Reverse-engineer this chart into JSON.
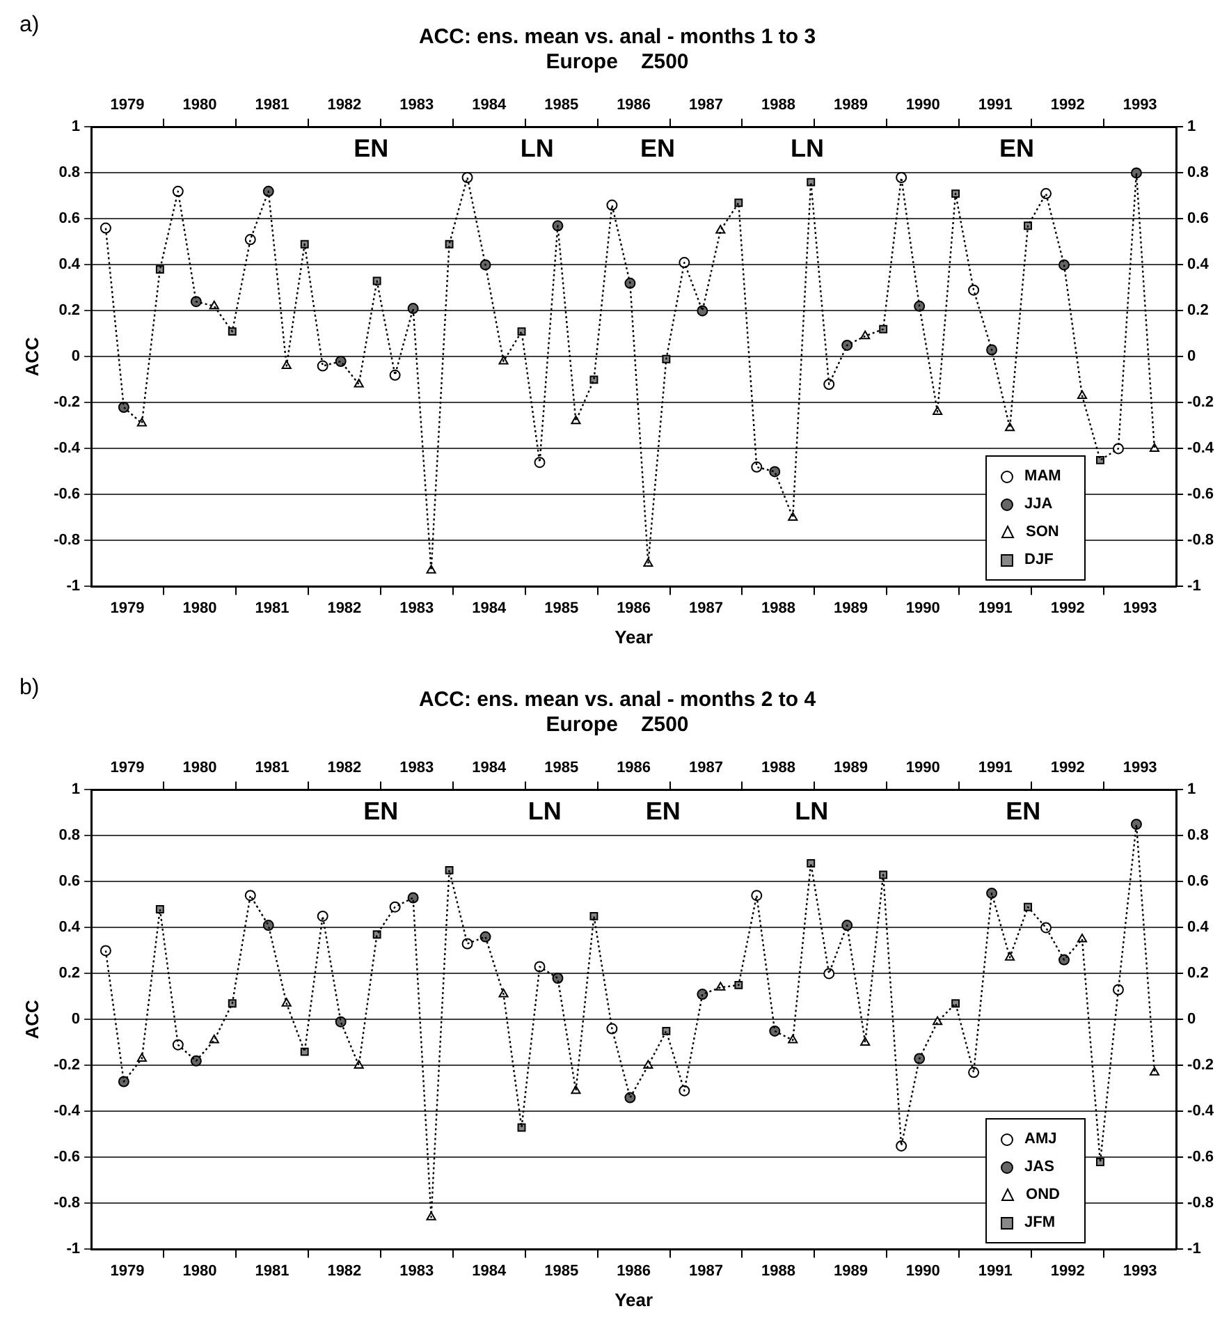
{
  "chart_data": [
    {
      "type": "line",
      "title": "ACC: ens. mean vs. anal - months 1 to 3",
      "subtitle": "Europe    Z500",
      "xlabel": "Year",
      "ylabel": "ACC",
      "annotations": [
        "a)",
        "EN",
        "LN",
        "EN",
        "LN",
        "EN"
      ],
      "series": [
        {
          "type": "line",
          "color": "#000000",
          "marker": "none",
          "line_style": "dotted",
          "x": [
            1979.2,
            1979.45,
            1979.7,
            1979.95,
            1980.2,
            1980.45,
            1980.7,
            1980.95,
            1981.2,
            1981.45,
            1981.7,
            1981.95,
            1982.2,
            1982.45,
            1982.7,
            1982.95,
            1983.2,
            1983.45,
            1983.7,
            1983.95,
            1984.2,
            1984.45,
            1984.7,
            1984.95,
            1985.2,
            1985.45,
            1985.7,
            1985.95,
            1986.2,
            1986.45,
            1986.7,
            1986.95,
            1987.2,
            1987.45,
            1987.7,
            1987.95,
            1988.2,
            1988.45,
            1988.7,
            1988.95,
            1989.2,
            1989.45,
            1989.7,
            1989.95,
            1990.2,
            1990.45,
            1990.7,
            1990.95,
            1991.2,
            1991.45,
            1991.7,
            1991.95,
            1992.2,
            1992.45,
            1992.7,
            1992.95,
            1993.2,
            1993.45,
            1993.7
          ],
          "values": [
            0.56,
            -0.22,
            -0.29,
            0.38,
            0.72,
            0.24,
            0.22,
            0.11,
            0.51,
            0.72,
            -0.04,
            0.49,
            -0.04,
            -0.02,
            -0.12,
            0.33,
            -0.08,
            0.21,
            -0.93,
            0.49,
            0.78,
            0.4,
            -0.02,
            0.11,
            -0.46,
            0.57,
            -0.28,
            -0.1,
            0.66,
            0.32,
            -0.9,
            -0.01,
            0.41,
            0.2,
            0.55,
            0.67,
            -0.48,
            -0.5,
            -0.7,
            0.76,
            -0.12,
            0.05,
            0.09,
            0.12,
            0.78,
            0.22,
            -0.24,
            0.71,
            0.29,
            0.03,
            -0.31,
            0.57,
            0.71,
            0.4,
            -0.17,
            -0.45,
            -0.4,
            0.8,
            -0.4
          ]
        },
        {
          "type": "scatter",
          "name": "MAM",
          "color": "#ffffff",
          "marker": "circle",
          "x": [
            1979.2,
            1980.2,
            1981.2,
            1982.2,
            1983.2,
            1984.2,
            1985.2,
            1986.2,
            1987.2,
            1988.2,
            1989.2,
            1990.2,
            1991.2,
            1992.2,
            1993.2
          ],
          "values": [
            0.56,
            0.72,
            0.51,
            -0.04,
            -0.08,
            0.78,
            -0.46,
            0.66,
            0.41,
            -0.48,
            -0.12,
            0.78,
            0.29,
            0.71,
            -0.4
          ]
        },
        {
          "type": "scatter",
          "name": "JJA",
          "color": "#666666",
          "marker": "circle",
          "x": [
            1979.45,
            1980.45,
            1981.45,
            1982.45,
            1983.45,
            1984.45,
            1985.45,
            1986.45,
            1987.45,
            1988.45,
            1989.45,
            1990.45,
            1991.45,
            1992.45,
            1993.45
          ],
          "values": [
            -0.22,
            0.24,
            0.72,
            -0.02,
            0.21,
            0.4,
            0.57,
            0.32,
            0.2,
            -0.5,
            0.05,
            0.22,
            0.03,
            0.4,
            0.8
          ]
        },
        {
          "type": "scatter",
          "name": "SON",
          "color": "#ffffff",
          "marker": "triangle",
          "x": [
            1979.7,
            1980.7,
            1981.7,
            1982.7,
            1983.7,
            1984.7,
            1985.7,
            1986.7,
            1987.7,
            1988.7,
            1989.7,
            1990.7,
            1991.7,
            1992.7,
            1993.7
          ],
          "values": [
            -0.29,
            0.22,
            -0.04,
            -0.12,
            -0.93,
            -0.02,
            -0.28,
            -0.9,
            0.55,
            -0.7,
            0.09,
            -0.24,
            -0.31,
            -0.17,
            -0.4
          ]
        },
        {
          "type": "scatter",
          "name": "DJF",
          "color": "#888888",
          "marker": "square",
          "x": [
            1979.95,
            1980.95,
            1981.95,
            1982.95,
            1983.95,
            1984.95,
            1985.95,
            1986.95,
            1987.95,
            1988.95,
            1989.95,
            1990.95,
            1991.95,
            1992.95
          ],
          "values": [
            0.38,
            0.11,
            0.49,
            0.33,
            0.49,
            0.11,
            -0.1,
            -0.01,
            0.67,
            0.76,
            0.12,
            0.71,
            0.57,
            -0.45
          ]
        }
      ],
      "xlim": [
        1979,
        1994
      ],
      "xticks": [
        {
          "value": 1979.5,
          "label": "1979"
        },
        {
          "value": 1980,
          "label": null
        },
        {
          "value": 1980.5,
          "label": "1980"
        },
        {
          "value": 1981,
          "label": null
        },
        {
          "value": 1981.5,
          "label": "1981"
        },
        {
          "value": 1982,
          "label": null
        },
        {
          "value": 1982.5,
          "label": "1982"
        },
        {
          "value": 1983,
          "label": null
        },
        {
          "value": 1983.5,
          "label": "1983"
        },
        {
          "value": 1984,
          "label": null
        },
        {
          "value": 1984.5,
          "label": "1984"
        },
        {
          "value": 1985,
          "label": null
        },
        {
          "value": 1985.5,
          "label": "1985"
        },
        {
          "value": 1986,
          "label": null
        },
        {
          "value": 1986.5,
          "label": "1986"
        },
        {
          "value": 1987,
          "label": null
        },
        {
          "value": 1987.5,
          "label": "1987"
        },
        {
          "value": 1988,
          "label": null
        },
        {
          "value": 1988.5,
          "label": "1988"
        },
        {
          "value": 1989,
          "label": null
        },
        {
          "value": 1989.5,
          "label": "1989"
        },
        {
          "value": 1990,
          "label": null
        },
        {
          "value": 1990.5,
          "label": "1990"
        },
        {
          "value": 1991,
          "label": null
        },
        {
          "value": 1991.5,
          "label": "1991"
        },
        {
          "value": 1992,
          "label": null
        },
        {
          "value": 1992.5,
          "label": "1992"
        },
        {
          "value": 1993,
          "label": null
        },
        {
          "value": 1993.5,
          "label": "1993"
        }
      ],
      "x2lim": [
        1979,
        1994
      ],
      "x2ticks": [
        {
          "value": 1979.5,
          "label": "1979"
        },
        {
          "value": 1980,
          "label": null
        },
        {
          "value": 1980.5,
          "label": "1980"
        },
        {
          "value": 1981,
          "label": null
        },
        {
          "value": 1981.5,
          "label": "1981"
        },
        {
          "value": 1982,
          "label": null
        },
        {
          "value": 1982.5,
          "label": "1982"
        },
        {
          "value": 1983,
          "label": null
        },
        {
          "value": 1983.5,
          "label": "1983"
        },
        {
          "value": 1984,
          "label": null
        },
        {
          "value": 1984.5,
          "label": "1984"
        },
        {
          "value": 1985,
          "label": null
        },
        {
          "value": 1985.5,
          "label": "1985"
        },
        {
          "value": 1986,
          "label": null
        },
        {
          "value": 1986.5,
          "label": "1986"
        },
        {
          "value": 1987,
          "label": null
        },
        {
          "value": 1987.5,
          "label": "1987"
        },
        {
          "value": 1988,
          "label": null
        },
        {
          "value": 1988.5,
          "label": "1988"
        },
        {
          "value": 1989,
          "label": null
        },
        {
          "value": 1989.5,
          "label": "1989"
        },
        {
          "value": 1990,
          "label": null
        },
        {
          "value": 1990.5,
          "label": "1990"
        },
        {
          "value": 1991,
          "label": null
        },
        {
          "value": 1991.5,
          "label": "1991"
        },
        {
          "value": 1992,
          "label": null
        },
        {
          "value": 1992.5,
          "label": "1992"
        },
        {
          "value": 1993,
          "label": null
        },
        {
          "value": 1993.5,
          "label": "1993"
        }
      ],
      "ylim": [
        -1,
        1
      ],
      "yticks": [
        -1,
        -0.8,
        -0.6,
        -0.4,
        -0.2,
        0,
        0.2,
        0.4,
        0.6,
        0.8,
        1
      ],
      "y2lim": [
        -1,
        1
      ],
      "y2ticks": [
        -1,
        -0.8,
        -0.6,
        -0.4,
        -0.2,
        0,
        0.2,
        0.4,
        0.6,
        0.8,
        1
      ],
      "grid": "y",
      "legend": "bottom right"
    },
    {
      "type": "line",
      "title": "ACC: ens. mean vs. anal - months 2 to 4",
      "subtitle": "Europe    Z500",
      "xlabel": "Year",
      "ylabel": "ACC",
      "annotations": [
        "b)",
        "EN",
        "LN",
        "EN",
        "LN",
        "EN"
      ],
      "series": [
        {
          "type": "line",
          "color": "#000000",
          "marker": "none",
          "line_style": "dotted",
          "x": [
            1979.2,
            1979.45,
            1979.7,
            1979.95,
            1980.2,
            1980.45,
            1980.7,
            1980.95,
            1981.2,
            1981.45,
            1981.7,
            1981.95,
            1982.2,
            1982.45,
            1982.7,
            1982.95,
            1983.2,
            1983.45,
            1983.7,
            1983.95,
            1984.2,
            1984.45,
            1984.7,
            1984.95,
            1985.2,
            1985.45,
            1985.7,
            1985.95,
            1986.2,
            1986.45,
            1986.7,
            1986.95,
            1987.2,
            1987.45,
            1987.7,
            1987.95,
            1988.2,
            1988.45,
            1988.7,
            1988.95,
            1989.2,
            1989.45,
            1989.7,
            1989.95,
            1990.2,
            1990.45,
            1990.7,
            1990.95,
            1991.2,
            1991.45,
            1991.7,
            1991.95,
            1992.2,
            1992.45,
            1992.7,
            1992.95,
            1993.2,
            1993.45,
            1993.7
          ],
          "values": [
            0.3,
            -0.27,
            -0.17,
            0.48,
            -0.11,
            -0.18,
            -0.09,
            0.07,
            0.54,
            0.41,
            0.07,
            -0.14,
            0.45,
            -0.01,
            -0.2,
            0.37,
            0.49,
            0.53,
            -0.86,
            0.65,
            0.33,
            0.36,
            0.11,
            -0.47,
            0.23,
            0.18,
            -0.31,
            0.45,
            -0.04,
            -0.34,
            -0.2,
            -0.05,
            -0.31,
            0.11,
            0.14,
            0.15,
            0.54,
            -0.05,
            -0.09,
            0.68,
            0.2,
            0.41,
            -0.1,
            0.63,
            -0.55,
            -0.17,
            -0.01,
            0.07,
            -0.23,
            0.55,
            0.27,
            0.49,
            0.4,
            0.26,
            0.35,
            -0.62,
            0.13,
            0.85,
            -0.23
          ]
        },
        {
          "type": "scatter",
          "name": "AMJ",
          "color": "#ffffff",
          "marker": "circle",
          "x": [
            1979.2,
            1980.2,
            1981.2,
            1982.2,
            1983.2,
            1984.2,
            1985.2,
            1986.2,
            1987.2,
            1988.2,
            1989.2,
            1990.2,
            1991.2,
            1992.2,
            1993.2
          ],
          "values": [
            0.3,
            -0.11,
            0.54,
            0.45,
            0.49,
            0.33,
            0.23,
            -0.04,
            -0.31,
            0.54,
            0.2,
            -0.55,
            -0.23,
            0.4,
            0.13
          ]
        },
        {
          "type": "scatter",
          "name": "JAS",
          "color": "#666666",
          "marker": "circle",
          "x": [
            1979.45,
            1980.45,
            1981.45,
            1982.45,
            1983.45,
            1984.45,
            1985.45,
            1986.45,
            1987.45,
            1988.45,
            1989.45,
            1990.45,
            1991.45,
            1992.45,
            1993.45
          ],
          "values": [
            -0.27,
            -0.18,
            0.41,
            -0.01,
            0.53,
            0.36,
            0.18,
            -0.34,
            0.11,
            -0.05,
            0.41,
            -0.17,
            0.55,
            0.26,
            0.85
          ]
        },
        {
          "type": "scatter",
          "name": "OND",
          "color": "#ffffff",
          "marker": "triangle",
          "x": [
            1979.7,
            1980.7,
            1981.7,
            1982.7,
            1983.7,
            1984.7,
            1985.7,
            1986.7,
            1987.7,
            1988.7,
            1989.7,
            1990.7,
            1991.7,
            1992.7,
            1993.7
          ],
          "values": [
            -0.17,
            -0.09,
            0.07,
            -0.2,
            -0.86,
            0.11,
            -0.31,
            -0.2,
            0.14,
            -0.09,
            -0.1,
            -0.01,
            0.27,
            0.35,
            -0.23
          ]
        },
        {
          "type": "scatter",
          "name": "JFM",
          "color": "#888888",
          "marker": "square",
          "x": [
            1979.95,
            1980.95,
            1981.95,
            1982.95,
            1983.95,
            1984.95,
            1985.95,
            1986.95,
            1987.95,
            1988.95,
            1989.95,
            1990.95,
            1991.95,
            1992.95
          ],
          "values": [
            0.48,
            0.07,
            -0.14,
            0.37,
            0.65,
            -0.47,
            0.45,
            -0.05,
            0.15,
            0.68,
            0.63,
            0.07,
            0.49,
            -0.62
          ]
        }
      ],
      "xlim": [
        1979,
        1994
      ],
      "xticks": [
        {
          "value": 1979.5,
          "label": "1979"
        },
        {
          "value": 1980,
          "label": null
        },
        {
          "value": 1980.5,
          "label": "1980"
        },
        {
          "value": 1981,
          "label": null
        },
        {
          "value": 1981.5,
          "label": "1981"
        },
        {
          "value": 1982,
          "label": null
        },
        {
          "value": 1982.5,
          "label": "1982"
        },
        {
          "value": 1983,
          "label": null
        },
        {
          "value": 1983.5,
          "label": "1983"
        },
        {
          "value": 1984,
          "label": null
        },
        {
          "value": 1984.5,
          "label": "1984"
        },
        {
          "value": 1985,
          "label": null
        },
        {
          "value": 1985.5,
          "label": "1985"
        },
        {
          "value": 1986,
          "label": null
        },
        {
          "value": 1986.5,
          "label": "1986"
        },
        {
          "value": 1987,
          "label": null
        },
        {
          "value": 1987.5,
          "label": "1987"
        },
        {
          "value": 1988,
          "label": null
        },
        {
          "value": 1988.5,
          "label": "1988"
        },
        {
          "value": 1989,
          "label": null
        },
        {
          "value": 1989.5,
          "label": "1989"
        },
        {
          "value": 1990,
          "label": null
        },
        {
          "value": 1990.5,
          "label": "1990"
        },
        {
          "value": 1991,
          "label": null
        },
        {
          "value": 1991.5,
          "label": "1991"
        },
        {
          "value": 1992,
          "label": null
        },
        {
          "value": 1992.5,
          "label": "1992"
        },
        {
          "value": 1993,
          "label": null
        },
        {
          "value": 1993.5,
          "label": "1993"
        }
      ],
      "x2lim": [
        1979,
        1994
      ],
      "x2ticks": [
        {
          "value": 1979.5,
          "label": "1979"
        },
        {
          "value": 1980,
          "label": null
        },
        {
          "value": 1980.5,
          "label": "1980"
        },
        {
          "value": 1981,
          "label": null
        },
        {
          "value": 1981.5,
          "label": "1981"
        },
        {
          "value": 1982,
          "label": null
        },
        {
          "value": 1982.5,
          "label": "1982"
        },
        {
          "value": 1983,
          "label": null
        },
        {
          "value": 1983.5,
          "label": "1983"
        },
        {
          "value": 1984,
          "label": null
        },
        {
          "value": 1984.5,
          "label": "1984"
        },
        {
          "value": 1985,
          "label": null
        },
        {
          "value": 1985.5,
          "label": "1985"
        },
        {
          "value": 1986,
          "label": null
        },
        {
          "value": 1986.5,
          "label": "1986"
        },
        {
          "value": 1987,
          "label": null
        },
        {
          "value": 1987.5,
          "label": "1987"
        },
        {
          "value": 1988,
          "label": null
        },
        {
          "value": 1988.5,
          "label": "1988"
        },
        {
          "value": 1989,
          "label": null
        },
        {
          "value": 1989.5,
          "label": "1989"
        },
        {
          "value": 1990,
          "label": null
        },
        {
          "value": 1990.5,
          "label": "1990"
        },
        {
          "value": 1991,
          "label": null
        },
        {
          "value": 1991.5,
          "label": "1991"
        },
        {
          "value": 1992,
          "label": null
        },
        {
          "value": 1992.5,
          "label": "1992"
        },
        {
          "value": 1993,
          "label": null
        },
        {
          "value": 1993.5,
          "label": "1993"
        }
      ],
      "ylim": [
        -1,
        1
      ],
      "yticks": [
        -1,
        -0.8,
        -0.6,
        -0.4,
        -0.2,
        0,
        0.2,
        0.4,
        0.6,
        0.8,
        1
      ],
      "y2lim": [
        -1,
        1
      ],
      "y2ticks": [
        -1,
        -0.8,
        -0.6,
        -0.4,
        -0.2,
        0,
        0.2,
        0.4,
        0.6,
        0.8,
        1
      ],
      "grid": "y",
      "legend": "bottom right"
    }
  ]
}
